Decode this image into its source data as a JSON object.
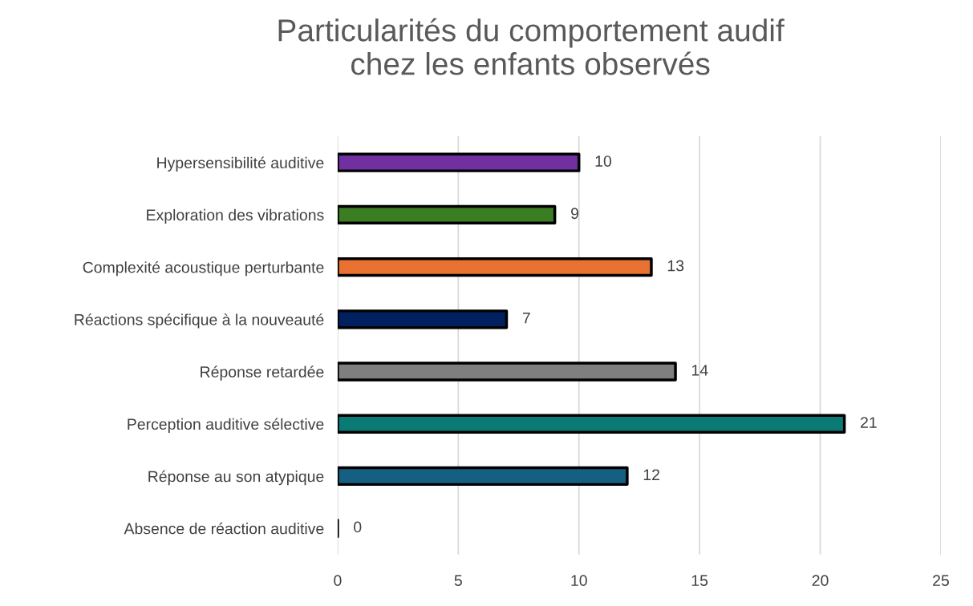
{
  "chart_data": {
    "type": "bar",
    "orientation": "horizontal",
    "title": "Particularités du comportement audif\nchez les enfants observés",
    "categories": [
      "Hypersensibilité auditive",
      "Exploration des vibrations",
      "Complexité acoustique perturbante",
      "Réactions spécifique à la nouveauté",
      "Réponse retardée",
      "Perception auditive sélective",
      "Réponse au son atypique",
      "Absence de réaction auditive"
    ],
    "values": [
      10,
      9,
      13,
      7,
      14,
      21,
      12,
      0
    ],
    "colors": [
      "#7030a0",
      "#3a7d22",
      "#e97132",
      "#002060",
      "#7f7f7f",
      "#0b7a75",
      "#156082",
      "#000000"
    ],
    "xlim": [
      0,
      25
    ],
    "xticks": [
      0,
      5,
      10,
      15,
      20,
      25
    ],
    "grid": "x",
    "data_labels": true
  }
}
